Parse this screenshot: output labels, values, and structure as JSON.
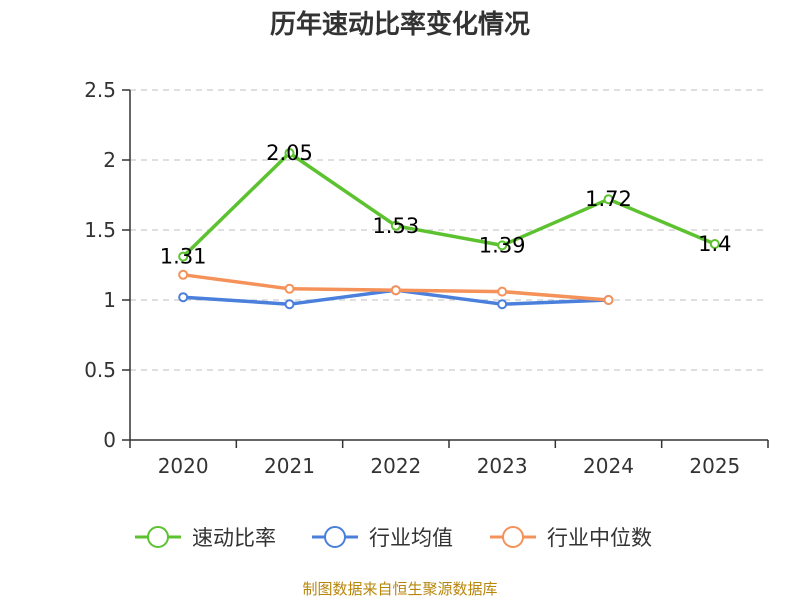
{
  "chart_data": {
    "type": "line",
    "title": "历年速动比率变化情况",
    "categories": [
      "2020",
      "2021",
      "2022",
      "2023",
      "2024",
      "2025"
    ],
    "ylim": [
      0,
      2.5
    ],
    "yticks": [
      "0",
      "0.5",
      "1",
      "1.5",
      "2",
      "2.5"
    ],
    "grid": true,
    "series": [
      {
        "name": "速动比率",
        "color": "#5cc22f",
        "values": [
          1.31,
          2.05,
          1.53,
          1.39,
          1.72,
          1.4
        ],
        "labels": [
          "1.31",
          "2.05",
          "1.53",
          "1.39",
          "1.72",
          "1.4"
        ]
      },
      {
        "name": "行业均值",
        "color": "#4a7fdc",
        "values": [
          1.02,
          0.97,
          1.07,
          0.97,
          1.0,
          null
        ]
      },
      {
        "name": "行业中位数",
        "color": "#f4925a",
        "values": [
          1.18,
          1.08,
          1.07,
          1.06,
          1.0,
          null
        ]
      }
    ],
    "legend_position": "bottom",
    "source": "制图数据来自恒生聚源数据库"
  }
}
